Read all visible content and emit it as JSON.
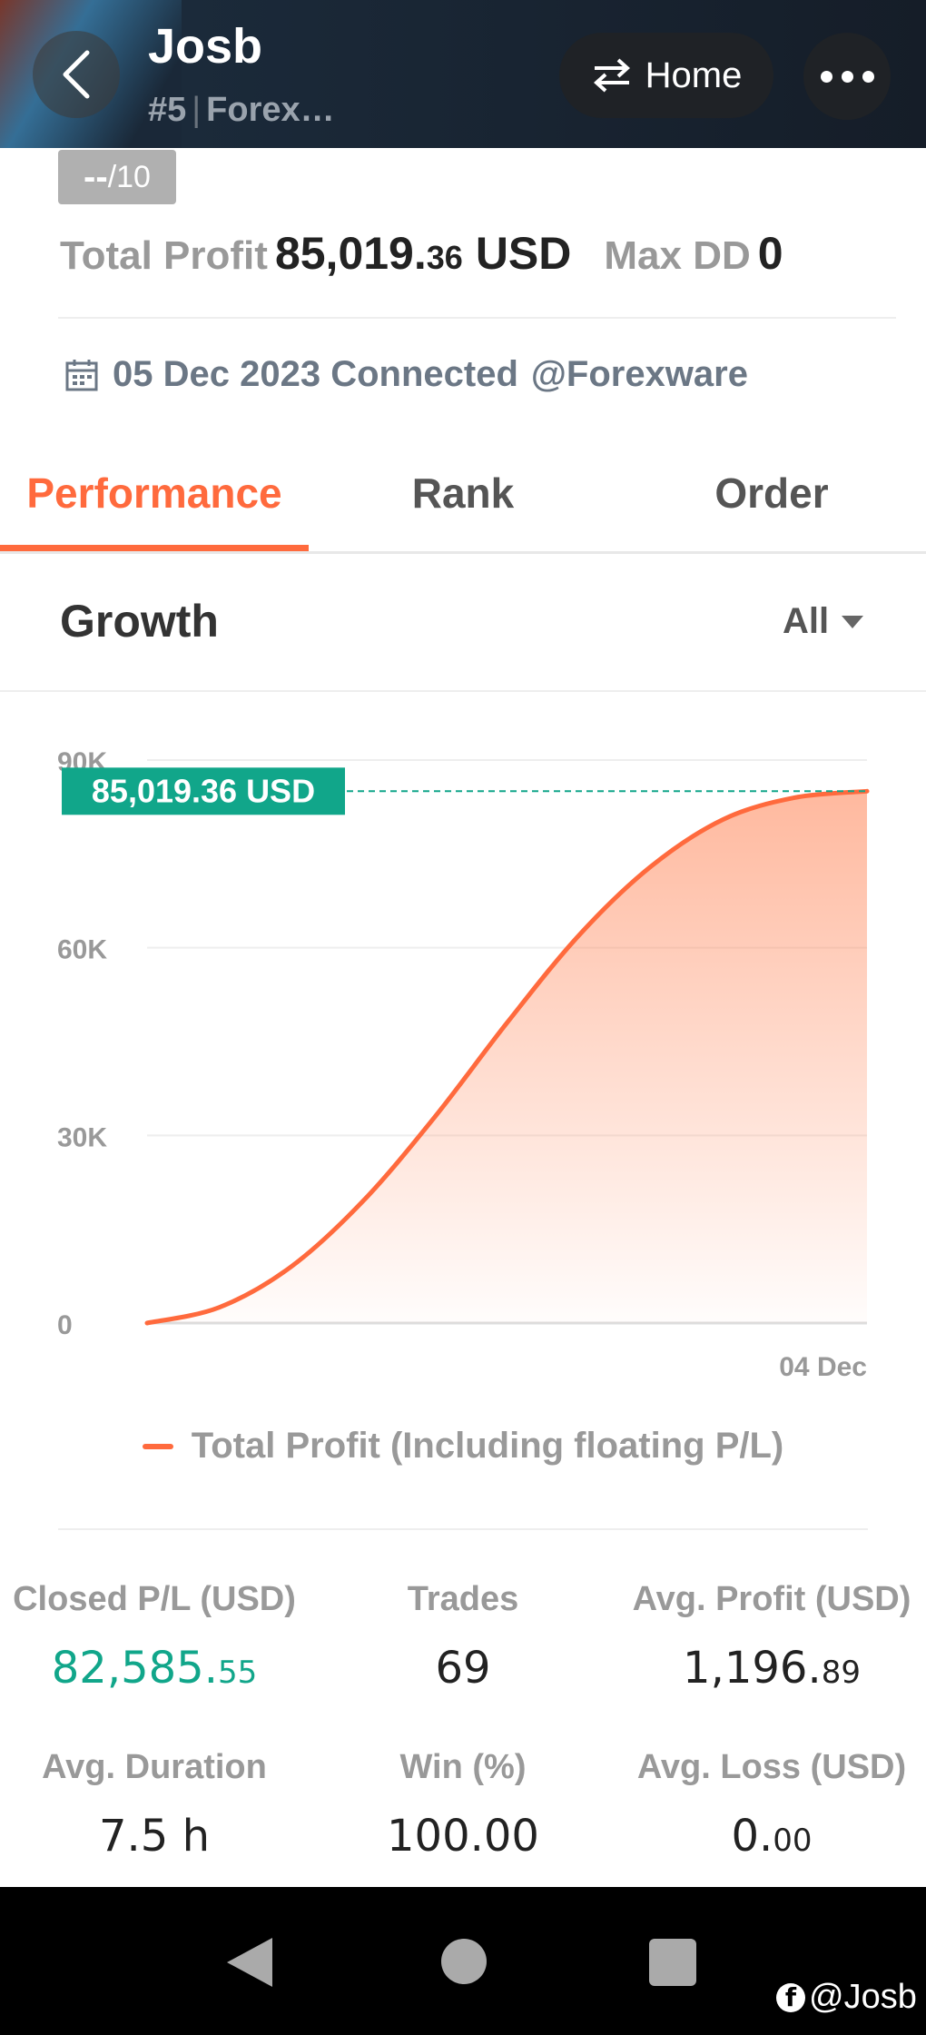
{
  "header": {
    "name": "Josb",
    "rank": "#5",
    "broker_short": "Forex…",
    "home_label": "Home"
  },
  "score": {
    "value": "--",
    "max": "/10"
  },
  "summary": {
    "total_profit_label": "Total Profit",
    "total_profit_int": "85,019.",
    "total_profit_dec": "36",
    "total_profit_unit": "USD",
    "max_dd_label": "Max DD",
    "max_dd_value": "0",
    "connected_text": "05 Dec 2023 Connected",
    "platform": "@Forexware"
  },
  "tabs": [
    {
      "label": "Performance",
      "active": true
    },
    {
      "label": "Rank",
      "active": false
    },
    {
      "label": "Order",
      "active": false
    }
  ],
  "growth": {
    "title": "Growth",
    "range": "All"
  },
  "chart_data": {
    "type": "area",
    "x_label_end": "04 Dec",
    "y_ticks": [
      {
        "value": 0,
        "label": "0"
      },
      {
        "value": 30000,
        "label": "30K"
      },
      {
        "value": 60000,
        "label": "60K"
      },
      {
        "value": 90000,
        "label": "90K"
      }
    ],
    "ylim": [
      0,
      90000
    ],
    "series": [
      {
        "name": "Total Profit (Including floating P/L)",
        "values": [
          0,
          2500,
          9000,
          19500,
          33000,
          48000,
          62000,
          73000,
          80500,
          84000,
          85019.36
        ]
      }
    ],
    "current_value_label": "85,019.36 USD",
    "current_value": 85019.36,
    "colors": {
      "line": "#ff6a3d",
      "marker": "#11a68a"
    }
  },
  "legend": {
    "label": "Total Profit (Including floating P/L)"
  },
  "stats": {
    "closed_pl": {
      "label": "Closed P/L (USD)",
      "int": "82,585.",
      "dec": "55"
    },
    "trades": {
      "label": "Trades",
      "value": "69"
    },
    "avg_profit": {
      "label": "Avg. Profit (USD)",
      "int": "1,196.",
      "dec": "89"
    },
    "avg_duration": {
      "label": "Avg. Duration",
      "value": "7.5 h"
    },
    "win": {
      "label": "Win (%)",
      "value": "100.00"
    },
    "avg_loss": {
      "label": "Avg. Loss (USD)",
      "int": "0.",
      "dec": "00"
    }
  },
  "watermark": "@Josb"
}
